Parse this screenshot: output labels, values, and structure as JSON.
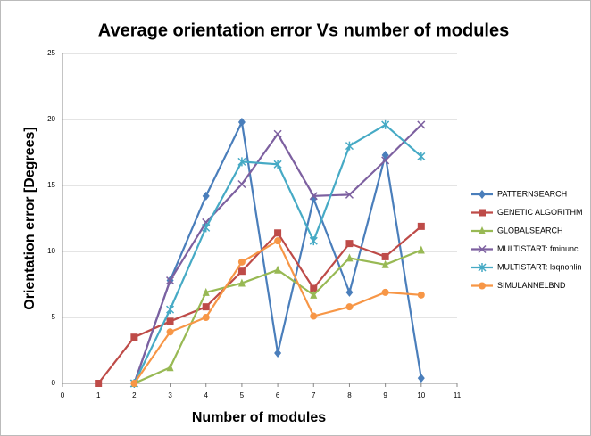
{
  "chart_data": {
    "type": "line",
    "title": "Average orientation error Vs number of modules",
    "x_label": "Number of modules",
    "y_label": "Orientation error [Degrees]",
    "x": [
      1,
      2,
      3,
      4,
      5,
      6,
      7,
      8,
      9,
      10
    ],
    "series": [
      {
        "name": "PATTERNSEARCH",
        "color": "#4a7ebb",
        "marker": "diamond",
        "values": [
          null,
          0,
          7.8,
          14.2,
          19.8,
          2.3,
          14.0,
          6.9,
          17.3,
          0.4
        ]
      },
      {
        "name": "GENETIC ALGORITHM",
        "color": "#be4b48",
        "marker": "square",
        "values": [
          0,
          3.5,
          4.7,
          5.8,
          8.5,
          11.4,
          7.2,
          10.6,
          9.6,
          11.9
        ]
      },
      {
        "name": "GLOBALSEARCH",
        "color": "#98b954",
        "marker": "triangle",
        "values": [
          null,
          0,
          1.2,
          6.9,
          7.6,
          8.6,
          6.7,
          9.5,
          9.0,
          10.1
        ]
      },
      {
        "name": "MULTISTART: fminunc",
        "color": "#7d60a0",
        "marker": "x",
        "values": [
          null,
          0,
          7.8,
          12.2,
          15.1,
          18.9,
          14.2,
          14.3,
          16.9,
          19.6
        ]
      },
      {
        "name": "MULTISTART: lsqnonlin",
        "color": "#46aac5",
        "marker": "star",
        "values": [
          null,
          0,
          5.6,
          11.8,
          16.8,
          16.6,
          10.8,
          18.0,
          19.6,
          17.2
        ]
      },
      {
        "name": "SIMULANNELBND",
        "color": "#f79646",
        "marker": "circle",
        "values": [
          null,
          0,
          3.9,
          5.0,
          9.2,
          10.8,
          5.1,
          5.8,
          6.9,
          6.7
        ]
      }
    ],
    "xlim": [
      0,
      11
    ],
    "xticks": [
      0,
      1,
      2,
      3,
      4,
      5,
      6,
      7,
      8,
      9,
      10,
      11
    ],
    "ylim": [
      0,
      25
    ],
    "yticks": [
      0,
      5,
      10,
      15,
      20,
      25
    ],
    "grid": true,
    "legend": "right"
  }
}
